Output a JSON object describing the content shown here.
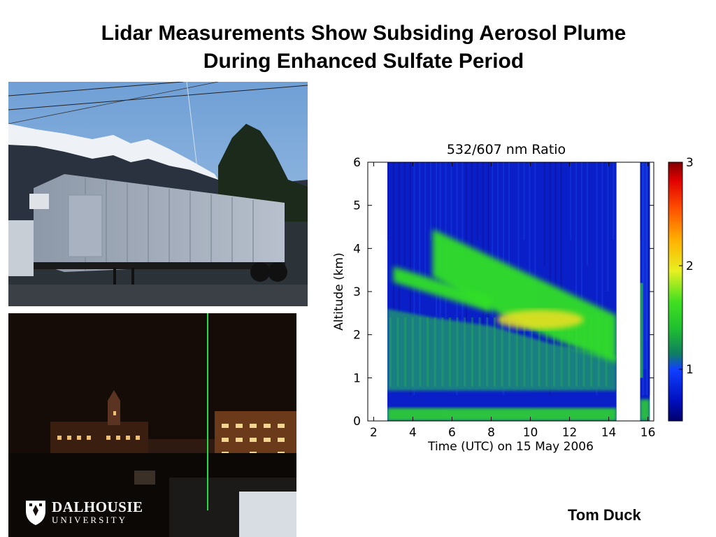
{
  "slide": {
    "title_line1": "Lidar Measurements Show Subsiding Aerosol Plume",
    "title_line2": "During Enhanced Sulfate Period",
    "author": "Tom Duck"
  },
  "logo": {
    "line1": "DALHOUSIE",
    "line2": "UNIVERSITY"
  },
  "colors": {
    "plot_background": "#0a1fc8",
    "plume_core": "#f0e020",
    "plume_green": "#30e028",
    "teal_layer": "#1a8a7a",
    "laser_beam": "#22dd44"
  },
  "chart_data": {
    "type": "heatmap",
    "title": "532/607 nm Ratio",
    "xlabel": "Time (UTC) on 15 May 2006",
    "ylabel": "Altitude (km)",
    "xlim": [
      1.7,
      16.3
    ],
    "ylim": [
      0,
      6
    ],
    "x_ticks": [
      "2",
      "4",
      "6",
      "8",
      "10",
      "12",
      "14",
      "16"
    ],
    "y_ticks": [
      "0",
      "1",
      "2",
      "3",
      "4",
      "5",
      "6"
    ],
    "colorbar": {
      "range": [
        0.5,
        3
      ],
      "ticks": [
        "1",
        "2",
        "3"
      ]
    },
    "data_coverage": [
      {
        "x_start": 2.7,
        "x_end": 14.4
      },
      {
        "x_start": 15.6,
        "x_end": 16.1
      }
    ],
    "features": [
      {
        "name": "",
        "x_start": 5.0,
        "x_end": 14.4,
        "altitude_start": 3.9,
        "altitude_end": 1.9,
        "peak_ratio": 2.3
      },
      {
        "name": "",
        "x_start": 3.0,
        "x_end": 8.0,
        "altitude_start": 3.4,
        "altitude_end": 2.7,
        "peak_ratio": 1.6
      },
      {
        "name": "",
        "x_start": 2.7,
        "x_end": 14.4,
        "altitude_start": 0.0,
        "altitude_end": 0.3,
        "peak_ratio": 1.5
      }
    ]
  }
}
